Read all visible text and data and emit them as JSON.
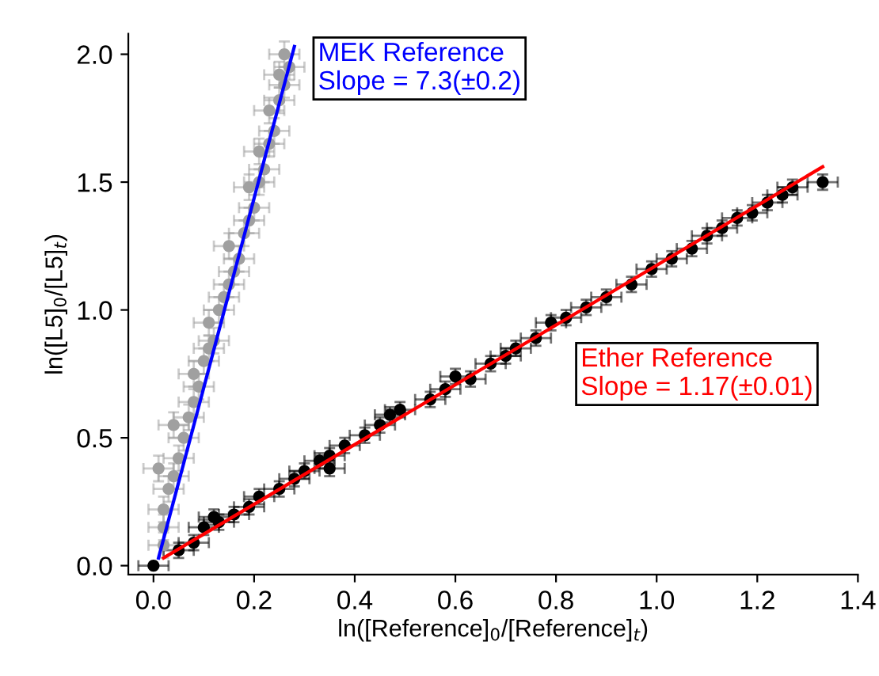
{
  "chart_data": {
    "type": "scatter",
    "xlabel": "ln([Reference]$_{0}$/[Reference]$_{t}$)",
    "ylabel": "ln([L5]$_{0}$/[L5]$_{t}$)",
    "xlim": [
      -0.05,
      1.4
    ],
    "ylim": [
      -0.035,
      2.08
    ],
    "xticks": [
      {
        "value": 0,
        "label": "0.0"
      },
      0.2,
      0.4,
      0.6,
      0.8,
      {
        "value": 1,
        "label": "1.0"
      },
      1.2,
      1.4
    ],
    "yticks": [
      {
        "value": 0,
        "label": "0.0"
      },
      0.5,
      {
        "value": 1,
        "label": "1.0"
      },
      1.5,
      {
        "value": 2,
        "label": "2.0"
      }
    ],
    "grid": false,
    "legend": false,
    "marker": "circle",
    "series": [
      {
        "color": "#a0a0a0",
        "x": [
          0.02,
          0.02,
          0.02,
          0.03,
          0.01,
          0.04,
          0.05,
          0.06,
          0.04,
          0.07,
          0.08,
          0.09,
          0.08,
          0.1,
          0.11,
          0.12,
          0.11,
          0.13,
          0.14,
          0.15,
          0.16,
          0.17,
          0.15,
          0.18,
          0.19,
          0.2,
          0.19,
          0.21,
          0.22,
          0.21,
          0.23,
          0.24,
          0.23,
          0.25,
          0.26,
          0.25,
          0.27,
          0.26
        ],
        "values": [
          0.08,
          0.15,
          0.22,
          0.3,
          0.38,
          0.35,
          0.42,
          0.5,
          0.55,
          0.58,
          0.64,
          0.7,
          0.75,
          0.8,
          0.85,
          0.88,
          0.95,
          1.0,
          1.05,
          1.1,
          1.15,
          1.2,
          1.25,
          1.3,
          1.35,
          1.4,
          1.48,
          1.5,
          1.55,
          1.62,
          1.65,
          1.7,
          1.78,
          1.82,
          1.88,
          1.92,
          1.95,
          2.0
        ],
        "errors": [
          0.05,
          0.05,
          0.05,
          0.05,
          0.05,
          0.05,
          0.05,
          0.05,
          0.05,
          0.05,
          0.05,
          0.05,
          0.05,
          0.05,
          0.05,
          0.05,
          0.05,
          0.05,
          0.05,
          0.05,
          0.05,
          0.05,
          0.05,
          0.05,
          0.05,
          0.05,
          0.05,
          0.05,
          0.05,
          0.05,
          0.05,
          0.05,
          0.05,
          0.05,
          0.05,
          0.05,
          0.05,
          0.05
        ],
        "xerrors": [
          0.03,
          0.03,
          0.03,
          0.03,
          0.03,
          0.03,
          0.03,
          0.03,
          0.03,
          0.03,
          0.03,
          0.03,
          0.03,
          0.03,
          0.03,
          0.03,
          0.03,
          0.03,
          0.03,
          0.03,
          0.03,
          0.03,
          0.03,
          0.03,
          0.03,
          0.03,
          0.03,
          0.03,
          0.03,
          0.03,
          0.03,
          0.03,
          0.03,
          0.03,
          0.03,
          0.03,
          0.03,
          0.03
        ]
      },
      {
        "color": "#000000",
        "x": [
          0.0,
          0.05,
          0.08,
          0.1,
          0.12,
          0.13,
          0.16,
          0.19,
          0.21,
          0.25,
          0.28,
          0.3,
          0.33,
          0.35,
          0.35,
          0.38,
          0.42,
          0.45,
          0.47,
          0.49,
          0.55,
          0.58,
          0.6,
          0.63,
          0.67,
          0.7,
          0.72,
          0.76,
          0.79,
          0.82,
          0.86,
          0.9,
          0.95,
          0.99,
          1.03,
          1.07,
          1.1,
          1.13,
          1.16,
          1.19,
          1.22,
          1.25,
          1.27,
          1.33
        ],
        "values": [
          0.0,
          0.06,
          0.09,
          0.15,
          0.19,
          0.17,
          0.2,
          0.23,
          0.27,
          0.3,
          0.34,
          0.37,
          0.41,
          0.38,
          0.43,
          0.47,
          0.51,
          0.55,
          0.59,
          0.61,
          0.65,
          0.69,
          0.74,
          0.73,
          0.79,
          0.82,
          0.85,
          0.89,
          0.95,
          0.97,
          1.01,
          1.05,
          1.1,
          1.16,
          1.2,
          1.24,
          1.29,
          1.32,
          1.36,
          1.38,
          1.42,
          1.45,
          1.48,
          1.5
        ],
        "errors": [
          null,
          0.03,
          0.03,
          0.03,
          0.03,
          0.03,
          0.03,
          0.03,
          0.03,
          0.03,
          0.03,
          0.03,
          0.03,
          0.03,
          0.03,
          0.03,
          0.03,
          0.03,
          0.03,
          0.03,
          0.03,
          0.03,
          0.03,
          0.03,
          0.03,
          0.03,
          0.03,
          0.03,
          0.03,
          0.03,
          0.03,
          0.03,
          0.03,
          0.03,
          0.03,
          0.03,
          0.03,
          0.03,
          0.03,
          0.03,
          0.03,
          0.03,
          0.03,
          0.03
        ],
        "xerrors": [
          0.03,
          0.03,
          0.03,
          0.03,
          0.03,
          0.03,
          0.03,
          0.03,
          0.03,
          0.03,
          0.03,
          0.03,
          0.03,
          0.03,
          0.03,
          0.03,
          0.03,
          0.03,
          0.03,
          0.03,
          0.03,
          0.03,
          0.03,
          0.03,
          0.03,
          0.03,
          0.03,
          0.03,
          0.03,
          0.03,
          0.03,
          0.03,
          0.03,
          0.03,
          0.03,
          0.03,
          0.03,
          0.03,
          0.03,
          0.03,
          0.03,
          0.03,
          0.03,
          0.03
        ]
      },
      {
        "type": "line",
        "name": "MEK Reference\nSlope = 7.3(±0.2)",
        "color": "#0000ff",
        "marker": "none",
        "line_style": "solid",
        "x": [
          0.01,
          0.28
        ],
        "values": [
          0.03,
          2.03
        ]
      },
      {
        "type": "line",
        "name": "Ether Reference\nSlope = 1.17(±0.01)",
        "color": "#ff0000",
        "marker": "none",
        "line_style": "solid",
        "x": [
          0.02,
          1.33
        ],
        "values": [
          0.03,
          1.56
        ]
      }
    ]
  }
}
